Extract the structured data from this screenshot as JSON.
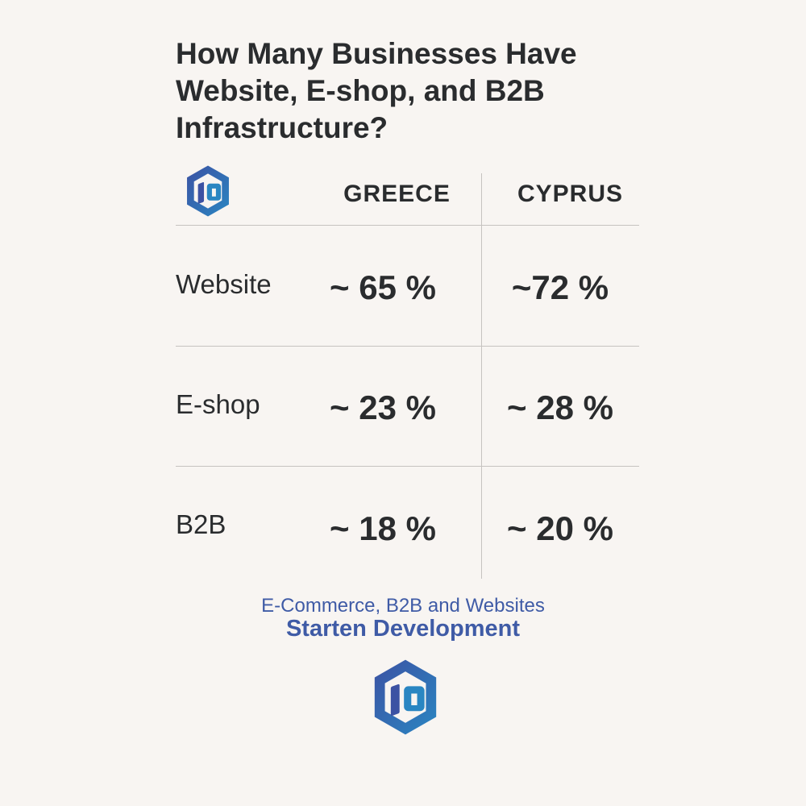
{
  "title_lines": [
    "How Many Businesses Have",
    "Website, E-shop, and B2B",
    "Infrastructure?"
  ],
  "colors": {
    "brand_blue": "#3f5ba6",
    "brand_teal": "#2a86c2",
    "text": "#2a2c2e",
    "grid": "#c6c3c0",
    "background": "#f8f5f2"
  },
  "icons": {
    "header_logo": "starten-logo-icon",
    "footer_logo": "starten-logo-icon"
  },
  "chart_data": {
    "type": "table",
    "title": "How Many Businesses Have Website, E-shop, and B2B Infrastructure?",
    "columns": [
      "GREECE",
      "CYPRUS"
    ],
    "rows": [
      {
        "label": "Website",
        "cells": [
          "~ 65 %",
          "~72 %"
        ],
        "values": [
          65,
          72
        ]
      },
      {
        "label": "E-shop",
        "cells": [
          "~ 23 %",
          "~ 28 %"
        ],
        "values": [
          23,
          28
        ]
      },
      {
        "label": "B2B",
        "cells": [
          "~ 18 %",
          "~ 20 %"
        ],
        "values": [
          18,
          20
        ]
      }
    ],
    "unit": "%"
  },
  "footer": {
    "subtitle": "E-Commerce, B2B and Websites",
    "brand": "Starten Development"
  }
}
